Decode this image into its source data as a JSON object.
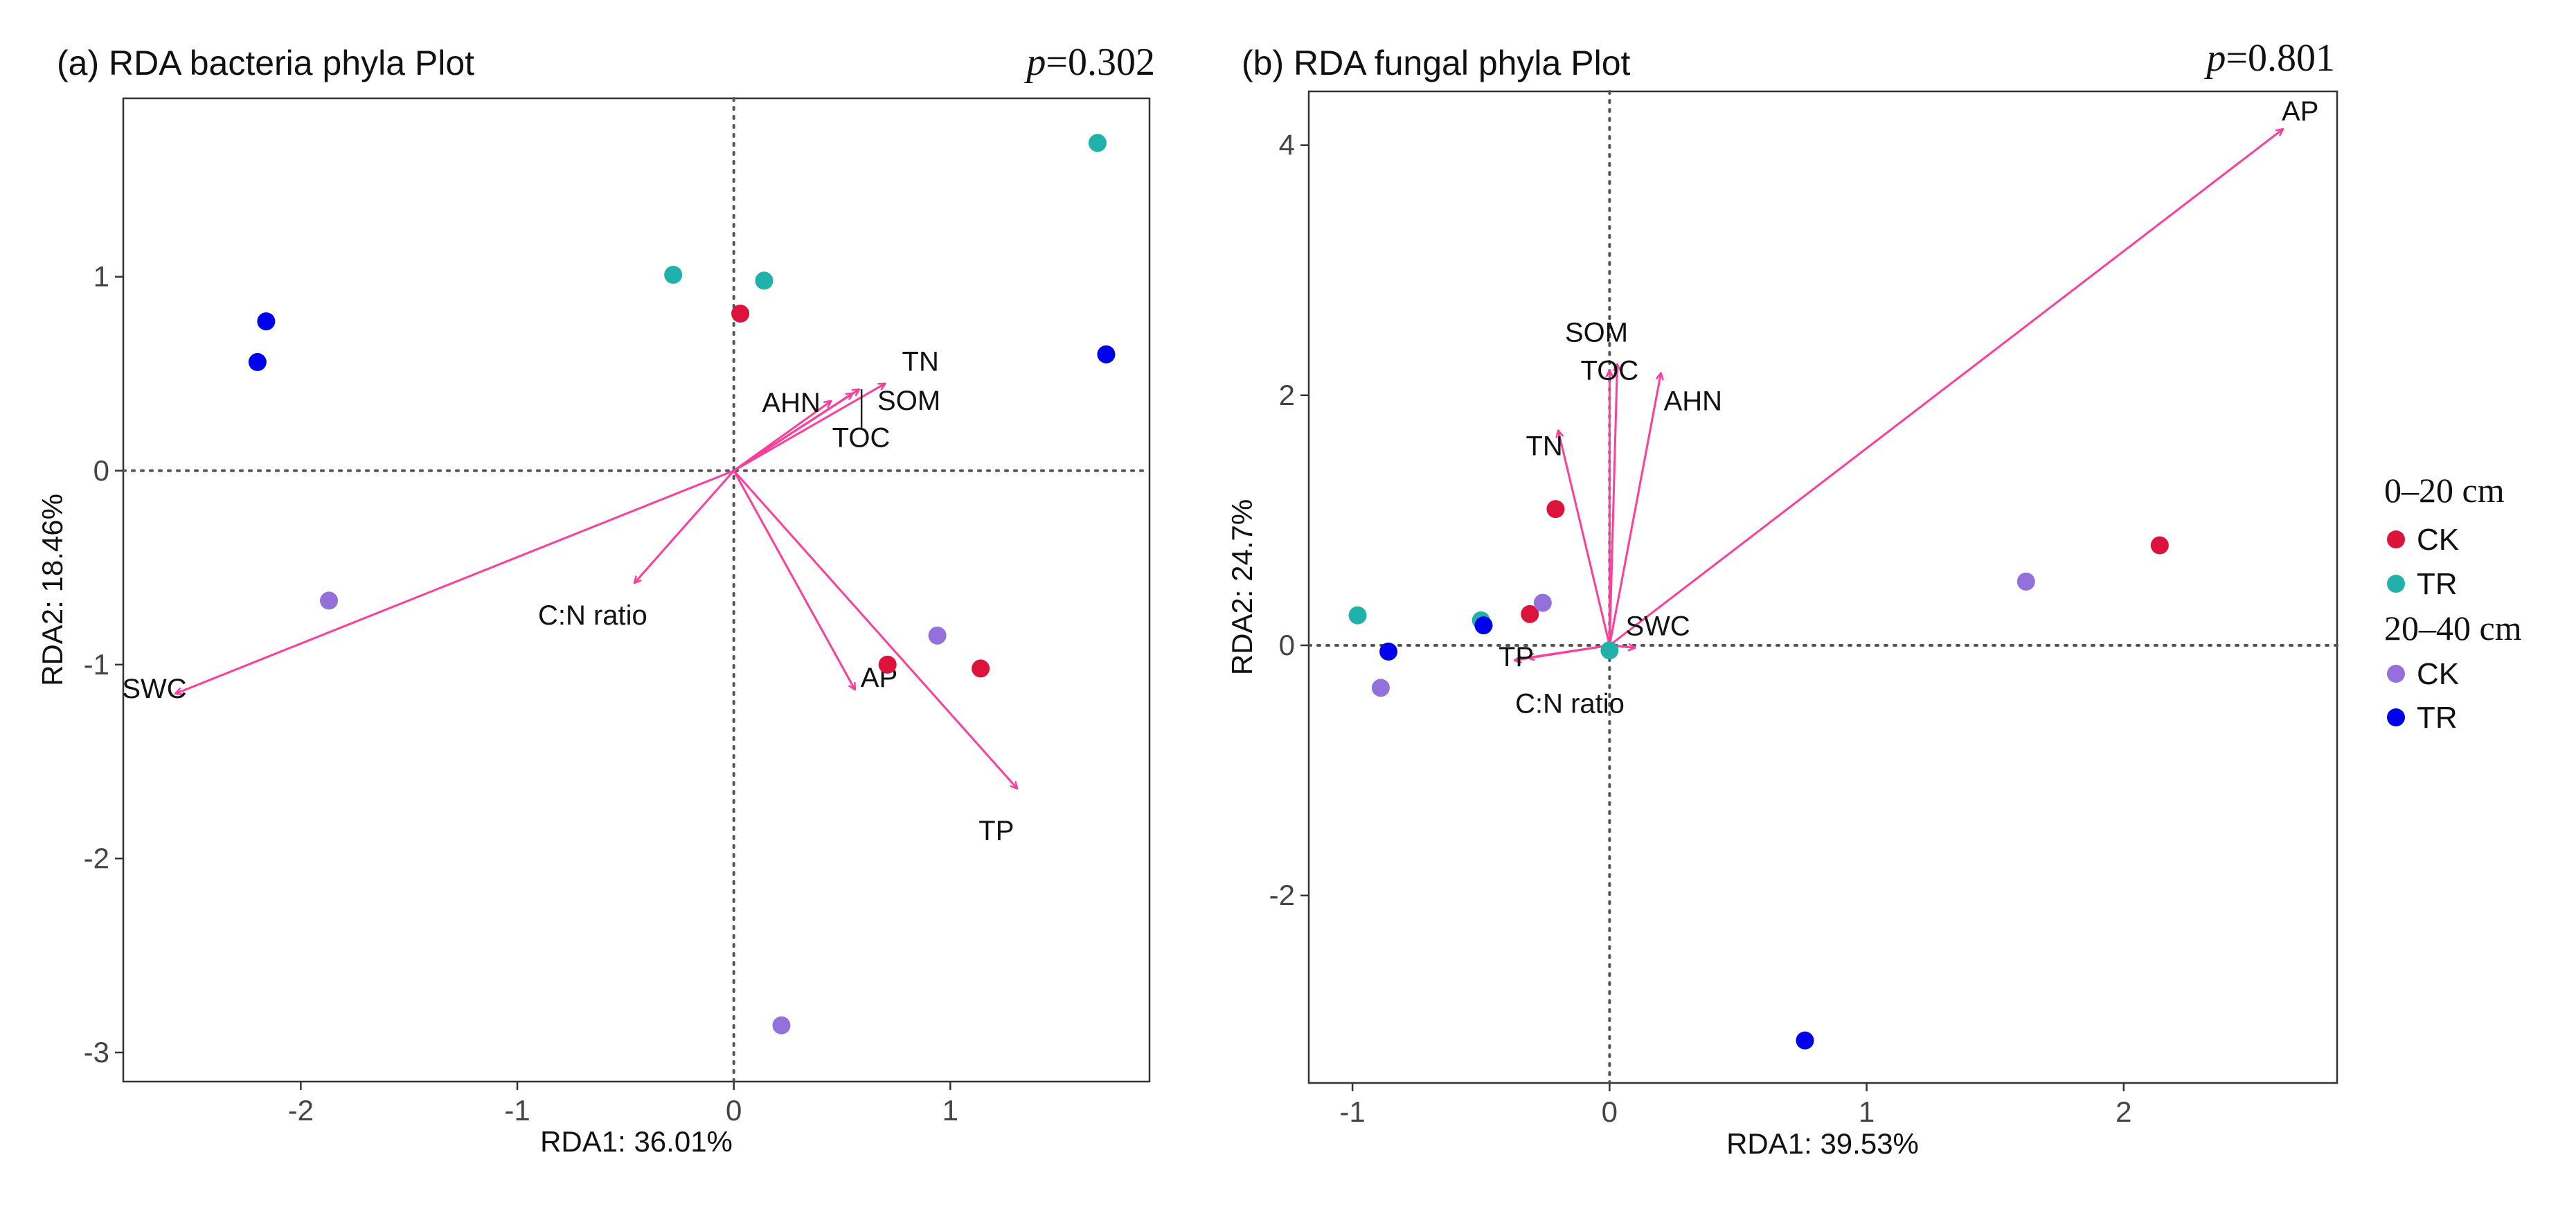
{
  "chart_data": [
    {
      "type": "scatter",
      "title": "(a) RDA bacteria phyla Plot",
      "p_label": "p",
      "p_value": "=0.302",
      "xlabel": "RDA1: 36.01%",
      "ylabel": "RDA2: 18.46%",
      "xlim": [
        -2.82,
        1.92
      ],
      "ylim": [
        -3.15,
        1.92
      ],
      "xticks": [
        -2,
        -1,
        0,
        1
      ],
      "yticks": [
        -3,
        -2,
        -1,
        0,
        1
      ],
      "reference_lines": {
        "x": 0,
        "y": 0,
        "style": "dotted"
      },
      "points": [
        {
          "group": "0-20 cm CK",
          "x": 0.03,
          "y": 0.81
        },
        {
          "group": "0-20 cm CK",
          "x": 0.71,
          "y": -1.0
        },
        {
          "group": "0-20 cm CK",
          "x": 1.14,
          "y": -1.02
        },
        {
          "group": "0-20 cm TR",
          "x": -0.28,
          "y": 1.01
        },
        {
          "group": "0-20 cm TR",
          "x": 0.14,
          "y": 0.98
        },
        {
          "group": "0-20 cm TR",
          "x": 1.68,
          "y": 1.69
        },
        {
          "group": "20-40 cm CK",
          "x": -1.87,
          "y": -0.67
        },
        {
          "group": "20-40 cm CK",
          "x": 0.94,
          "y": -0.85
        },
        {
          "group": "20-40 cm CK",
          "x": 0.22,
          "y": -2.86
        },
        {
          "group": "20-40 cm TR",
          "x": -2.16,
          "y": 0.77
        },
        {
          "group": "20-40 cm TR",
          "x": -2.2,
          "y": 0.56
        },
        {
          "group": "20-40 cm TR",
          "x": 1.72,
          "y": 0.6
        }
      ],
      "arrows": [
        {
          "label": "TN",
          "x": 0.7,
          "y": 0.45
        },
        {
          "label": "SOM",
          "x": 0.58,
          "y": 0.42
        },
        {
          "label": "TOC",
          "x": 0.55,
          "y": 0.4
        },
        {
          "label": "AHN",
          "x": 0.45,
          "y": 0.36
        },
        {
          "label": "C:N ratio",
          "x": -0.46,
          "y": -0.58
        },
        {
          "label": "SWC",
          "x": -2.58,
          "y": -1.15
        },
        {
          "label": "AP",
          "x": 0.56,
          "y": -1.13
        },
        {
          "label": "TP",
          "x": 1.31,
          "y": -1.64
        }
      ]
    },
    {
      "type": "scatter",
      "title": "(b) RDA fungal phyla Plot",
      "p_label": "p",
      "p_value": "=0.801",
      "xlabel": "RDA1: 39.53%",
      "ylabel": "RDA2: 24.7%",
      "xlim": [
        -1.17,
        2.83
      ],
      "ylim": [
        -3.5,
        4.43
      ],
      "xticks": [
        -1,
        0,
        1,
        2
      ],
      "yticks": [
        -2,
        0,
        2,
        4
      ],
      "reference_lines": {
        "x": 0,
        "y": 0,
        "style": "dotted"
      },
      "points": [
        {
          "group": "0-20 cm CK",
          "x": -0.21,
          "y": 1.09
        },
        {
          "group": "0-20 cm CK",
          "x": -0.31,
          "y": 0.25
        },
        {
          "group": "0-20 cm CK",
          "x": 2.14,
          "y": 0.8
        },
        {
          "group": "0-20 cm TR",
          "x": -0.98,
          "y": 0.24
        },
        {
          "group": "0-20 cm TR",
          "x": -0.5,
          "y": 0.2
        },
        {
          "group": "0-20 cm TR",
          "x": 0.0,
          "y": -0.04
        },
        {
          "group": "20-40 cm CK",
          "x": -0.26,
          "y": 0.34
        },
        {
          "group": "20-40 cm CK",
          "x": -0.89,
          "y": -0.34
        },
        {
          "group": "20-40 cm CK",
          "x": 1.62,
          "y": 0.51
        },
        {
          "group": "20-40 cm TR",
          "x": -0.86,
          "y": -0.05
        },
        {
          "group": "20-40 cm TR",
          "x": -0.49,
          "y": 0.16
        },
        {
          "group": "20-40 cm TR",
          "x": 0.76,
          "y": -3.16
        }
      ],
      "arrows": [
        {
          "label": "AP",
          "x": 2.62,
          "y": 4.13
        },
        {
          "label": "SOM",
          "x": 0.03,
          "y": 2.25
        },
        {
          "label": "TOC",
          "x": 0.0,
          "y": 2.2
        },
        {
          "label": "AHN",
          "x": 0.2,
          "y": 2.18
        },
        {
          "label": "TN",
          "x": -0.2,
          "y": 1.72
        },
        {
          "label": "SWC",
          "x": 0.1,
          "y": -0.02
        },
        {
          "label": "C:N ratio",
          "x": -0.37,
          "y": -0.12
        },
        {
          "label": "TP",
          "x": -0.32,
          "y": -0.1
        }
      ]
    }
  ],
  "legend": {
    "sections": [
      {
        "title": "0–20 cm",
        "items": [
          {
            "label": "CK",
            "color": "#dc143c"
          },
          {
            "label": "TR",
            "color": "#20b2aa"
          }
        ]
      },
      {
        "title": "20–40 cm",
        "items": [
          {
            "label": "CK",
            "color": "#9370db"
          },
          {
            "label": "TR",
            "color": "#0000ee"
          }
        ]
      }
    ]
  },
  "colors": {
    "0-20 cm CK": "#dc143c",
    "0-20 cm TR": "#20b2aa",
    "20-40 cm CK": "#9370db",
    "20-40 cm TR": "#0000ee",
    "arrow": "#ff3d9a"
  }
}
